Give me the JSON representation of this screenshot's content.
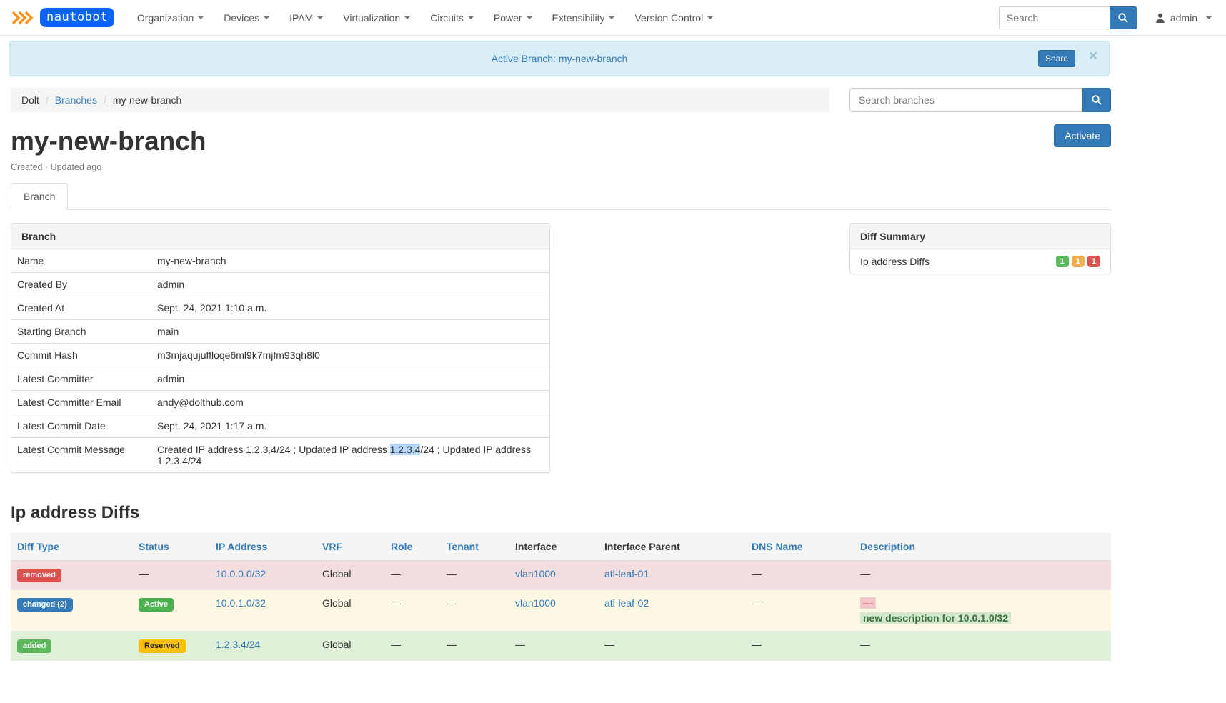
{
  "navbar": {
    "brand": "nautobot",
    "menu": [
      {
        "label": "Organization"
      },
      {
        "label": "Devices"
      },
      {
        "label": "IPAM"
      },
      {
        "label": "Virtualization"
      },
      {
        "label": "Circuits"
      },
      {
        "label": "Power"
      },
      {
        "label": "Extensibility"
      },
      {
        "label": "Version Control"
      }
    ],
    "search_placeholder": "Search",
    "user": "admin"
  },
  "banner": {
    "text": "Active Branch: my-new-branch",
    "share_label": "Share",
    "close_glyph": "×"
  },
  "breadcrumb": {
    "separator": "/",
    "items": [
      {
        "label": "Dolt",
        "link": false
      },
      {
        "label": "Branches",
        "link": true
      },
      {
        "label": "my-new-branch",
        "link": false
      }
    ]
  },
  "branch_search": {
    "placeholder": "Search branches"
  },
  "actions": {
    "activate_label": "Activate"
  },
  "page": {
    "title": "my-new-branch",
    "subtitle": "Created · Updated ago",
    "tab": "Branch"
  },
  "branch_panel": {
    "title": "Branch",
    "rows": [
      {
        "label": "Name",
        "value": "my-new-branch"
      },
      {
        "label": "Created By",
        "value": "admin"
      },
      {
        "label": "Created At",
        "value": "Sept. 24, 2021 1:10 a.m."
      },
      {
        "label": "Starting Branch",
        "value": "main"
      },
      {
        "label": "Commit Hash",
        "value": "m3mjaqujuffloqe6ml9k7mjfm93qh8l0"
      },
      {
        "label": "Latest Committer",
        "value": "admin"
      },
      {
        "label": "Latest Committer Email",
        "value": "andy@dolthub.com"
      },
      {
        "label": "Latest Commit Date",
        "value": "Sept. 24, 2021 1:17 a.m."
      },
      {
        "label": "Latest Commit Message",
        "segments": [
          {
            "text": "Created IP address 1.2.3.4/24 ; Updated IP address "
          },
          {
            "text": "1.2.3.4",
            "highlight": true
          },
          {
            "text": "/24 ; Updated IP address 1.2.3.4/24"
          }
        ]
      }
    ]
  },
  "diff_summary": {
    "title": "Diff Summary",
    "row_label": "Ip address Diffs",
    "badges": [
      {
        "count": "1",
        "color": "#5cb85c"
      },
      {
        "count": "1",
        "color": "#f0ad4e"
      },
      {
        "count": "1",
        "color": "#d9534f"
      }
    ]
  },
  "diffs": {
    "heading": "Ip address Diffs",
    "dash": "—",
    "columns": [
      {
        "label": "Diff Type",
        "sortable": true
      },
      {
        "label": "Status",
        "sortable": true
      },
      {
        "label": "IP Address",
        "sortable": true
      },
      {
        "label": "VRF",
        "sortable": true
      },
      {
        "label": "Role",
        "sortable": true
      },
      {
        "label": "Tenant",
        "sortable": true
      },
      {
        "label": "Interface",
        "sortable": false
      },
      {
        "label": "Interface Parent",
        "sortable": false
      },
      {
        "label": "DNS Name",
        "sortable": true
      },
      {
        "label": "Description",
        "sortable": true
      }
    ],
    "rows": [
      {
        "row_bg": "#f2dede",
        "cells": [
          {
            "type": "badge",
            "text": "removed",
            "bg": "#d9534f",
            "fg": "#ffffff"
          },
          {
            "type": "dash"
          },
          {
            "type": "link",
            "text": "10.0.0.0/32"
          },
          {
            "type": "text",
            "text": "Global"
          },
          {
            "type": "dash"
          },
          {
            "type": "dash"
          },
          {
            "type": "link",
            "text": "vlan1000"
          },
          {
            "type": "link",
            "text": "atl-leaf-01"
          },
          {
            "type": "dash"
          },
          {
            "type": "dash"
          }
        ]
      },
      {
        "row_bg": "#fcf8e3",
        "cells": [
          {
            "type": "badge",
            "text": "changed (2)",
            "bg": "#337ab7",
            "fg": "#ffffff"
          },
          {
            "type": "badge",
            "text": "Active",
            "bg": "#4caf50",
            "fg": "#ffffff"
          },
          {
            "type": "link",
            "text": "10.0.1.0/32"
          },
          {
            "type": "text",
            "text": "Global"
          },
          {
            "type": "dash"
          },
          {
            "type": "dash"
          },
          {
            "type": "link",
            "text": "vlan1000"
          },
          {
            "type": "link",
            "text": "atl-leaf-02"
          },
          {
            "type": "dash"
          },
          {
            "type": "change",
            "removed_text": "—",
            "added_text": "new description for 10.0.1.0/32"
          }
        ]
      },
      {
        "row_bg": "#dff0d8",
        "cells": [
          {
            "type": "badge",
            "text": "added",
            "bg": "#5cb85c",
            "fg": "#ffffff"
          },
          {
            "type": "badge",
            "text": "Reserved",
            "bg": "#ffc107",
            "fg": "#212121"
          },
          {
            "type": "link",
            "text": "1.2.3.4/24"
          },
          {
            "type": "text",
            "text": "Global"
          },
          {
            "type": "dash"
          },
          {
            "type": "dash"
          },
          {
            "type": "dash"
          },
          {
            "type": "dash"
          },
          {
            "type": "dash"
          },
          {
            "type": "dash"
          }
        ]
      }
    ]
  },
  "colors": {
    "accent": "#337ab7",
    "link": "#337ab7"
  }
}
